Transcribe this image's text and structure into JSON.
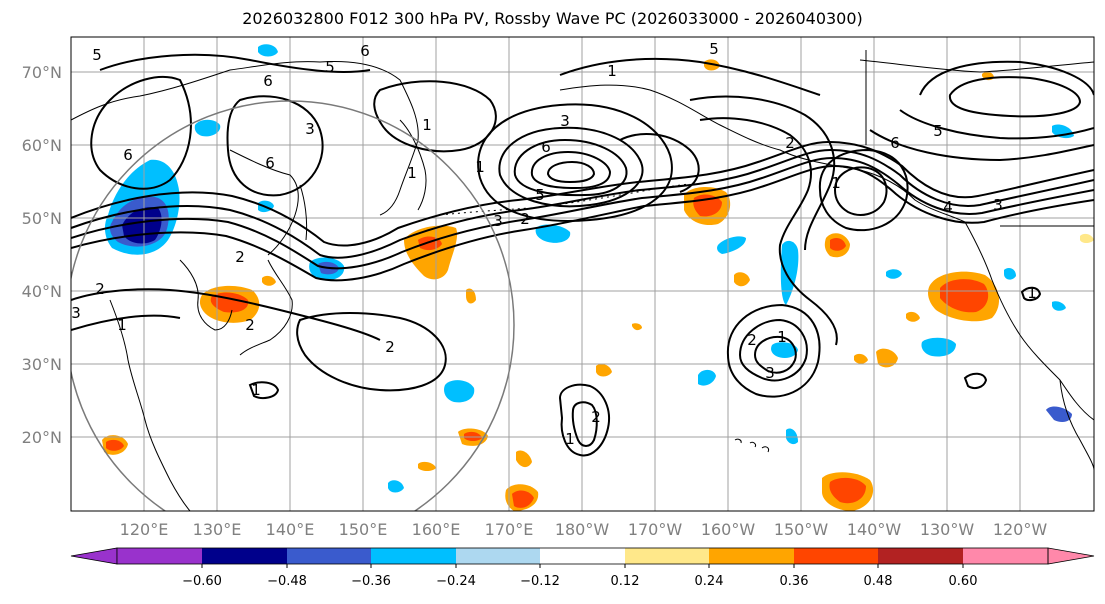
{
  "title": "2026032800 F012 300 hPa PV, Rossby Wave PC (2026033000 - 2026040300)",
  "latitude_labels": [
    "70°N",
    "60°N",
    "50°N",
    "40°N",
    "30°N",
    "20°N"
  ],
  "longitude_labels": [
    "120°E",
    "130°E",
    "140°E",
    "150°E",
    "160°E",
    "170°E",
    "180°W",
    "170°W",
    "160°W",
    "150°W",
    "140°W",
    "130°W",
    "120°W"
  ],
  "colorbar": {
    "tick_labels": [
      "−0.60",
      "−0.48",
      "−0.36",
      "−0.24",
      "−0.12",
      "0.12",
      "0.24",
      "0.36",
      "0.48",
      "0.60"
    ],
    "colors": [
      "#9932cc",
      "#00008b",
      "#3a5bcd",
      "#00bfff",
      "#add8f0",
      "#ffffff",
      "#ffe88a",
      "#ffa500",
      "#ff4500",
      "#b22222",
      "#ff88aa"
    ]
  },
  "contour_labels": [
    "5",
    "6",
    "5",
    "1",
    "6",
    "2",
    "3",
    "6",
    "1",
    "6",
    "5",
    "1",
    "2",
    "3",
    "1",
    "6",
    "5",
    "3",
    "2",
    "1",
    "3",
    "5",
    "6",
    "4",
    "3",
    "2",
    "1",
    "2",
    "2",
    "3",
    "1",
    "2",
    "1",
    "2",
    "1",
    "1"
  ],
  "shading_colors": {
    "dark_blue": "#00008b",
    "mid_blue": "#3a5bcd",
    "cyan": "#00bfff",
    "light_blue": "#add8f0",
    "yellow": "#ffe88a",
    "orange": "#ffa500",
    "red_orange": "#ff4500",
    "dark_red": "#b22222"
  }
}
